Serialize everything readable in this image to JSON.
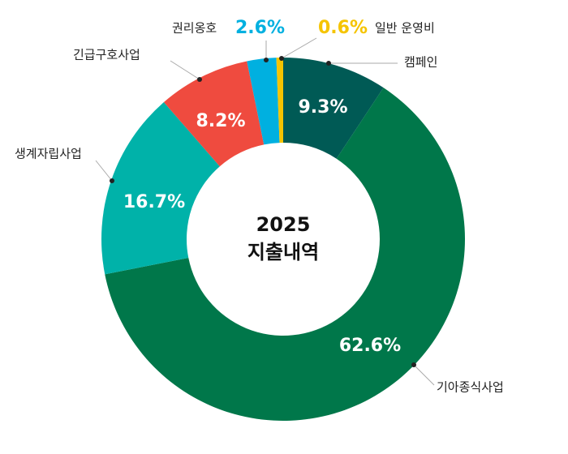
{
  "chart_data": {
    "type": "donut",
    "center_title": [
      "2025",
      "지출내역"
    ],
    "categories": [
      "캠페인",
      "기아종식사업",
      "생계자립사업",
      "긴급구호사업",
      "권리옹호",
      "일반 운영비"
    ],
    "values": [
      9.3,
      62.6,
      16.7,
      8.2,
      2.6,
      0.6
    ],
    "value_labels": [
      "9.3%",
      "62.6%",
      "16.7%",
      "8.2%",
      "2.6%",
      "0.6%"
    ],
    "colors": [
      "#005a55",
      "#00774a",
      "#00b2a9",
      "#ef4b3f",
      "#00b0e0",
      "#f5c400"
    ]
  }
}
